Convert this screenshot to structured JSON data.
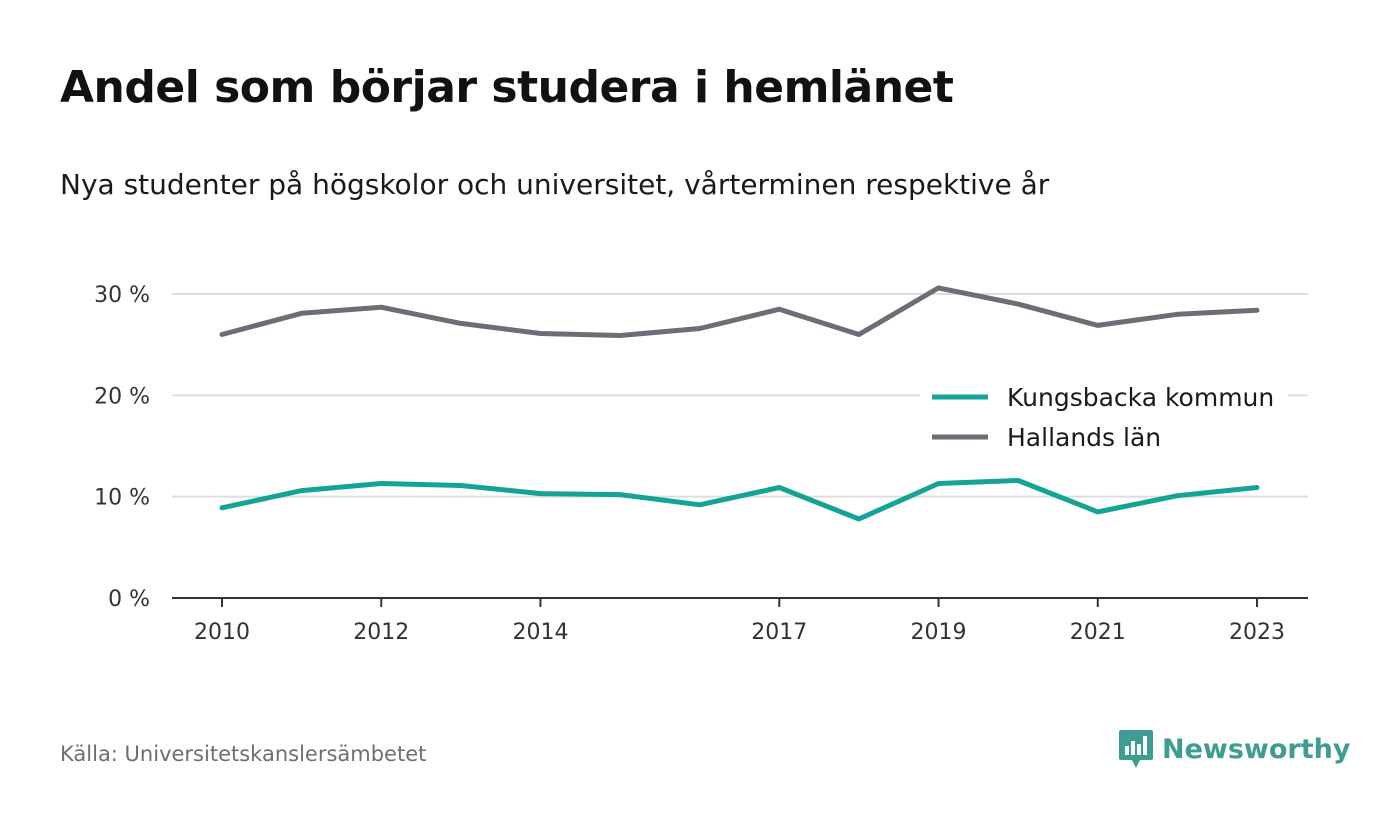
{
  "title": "Andel som börjar studera i hemlänet",
  "subtitle": "Nya studenter på högskolor och universitet, vårterminen respektive år",
  "source": "Källa: Universitetskanslersämbetet",
  "brand": "Newsworthy",
  "colors": {
    "kungsbacka": "#14a396",
    "halland": "#6e6d76",
    "grid": "#dddde0",
    "axis": "#333333",
    "brand": "#3f9c93"
  },
  "chart_data": {
    "type": "line",
    "x": [
      2010,
      2011,
      2012,
      2013,
      2014,
      2015,
      2016,
      2017,
      2018,
      2019,
      2020,
      2021,
      2022,
      2023
    ],
    "x_tick_values": [
      2010,
      2012,
      2014,
      2017,
      2019,
      2021,
      2023
    ],
    "x_tick_labels": [
      "2010",
      "2012",
      "2014",
      "2017",
      "2019",
      "2021",
      "2023"
    ],
    "y_tick_values": [
      0,
      10,
      20,
      30
    ],
    "y_tick_labels": [
      "0 %",
      "10 %",
      "20 %",
      "30 %"
    ],
    "ylim": [
      0,
      30
    ],
    "grid": true,
    "legend_position": "right",
    "series": [
      {
        "name": "Kungsbacka kommun",
        "color": "#14a396",
        "values": [
          8.9,
          10.6,
          11.3,
          11.1,
          10.3,
          10.2,
          9.2,
          10.9,
          7.8,
          11.3,
          11.6,
          8.5,
          10.1,
          10.9
        ]
      },
      {
        "name": "Hallands län",
        "color": "#6e6d76",
        "values": [
          26.0,
          28.1,
          28.7,
          27.1,
          26.1,
          25.9,
          26.6,
          28.5,
          26.0,
          30.6,
          29.0,
          26.9,
          28.0,
          28.4
        ]
      }
    ]
  }
}
